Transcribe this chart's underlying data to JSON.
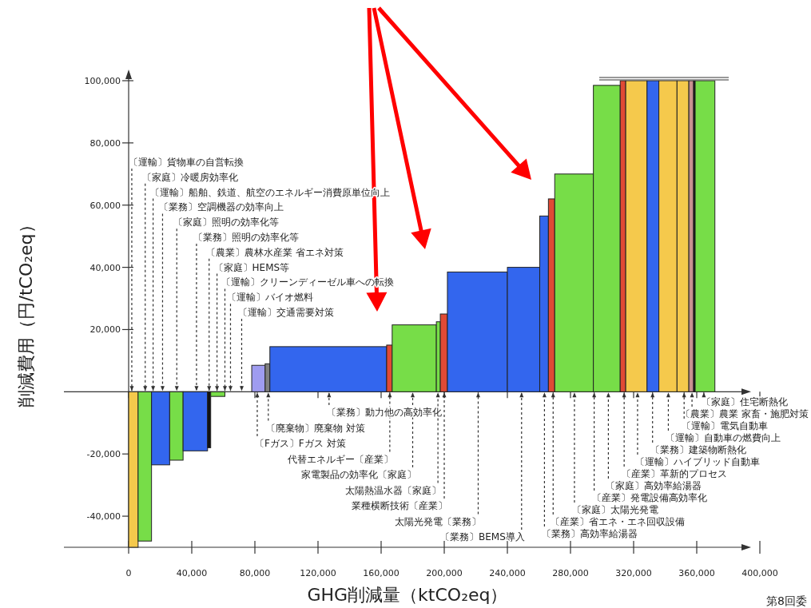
{
  "chart_data": {
    "type": "histogram",
    "xlabel": "GHG削減量（ktCO₂eq）",
    "ylabel": "削減費用（円/tCO₂eq）",
    "bins": [
      0,
      6000,
      14500,
      26000,
      34500,
      50000,
      52000,
      61000,
      78000,
      86500,
      89500,
      163500,
      167000,
      195000,
      197500,
      202000,
      240000,
      260500,
      266000,
      270000,
      294500,
      311500,
      315000,
      328500,
      336000,
      347500,
      355000,
      358000,
      359000,
      371500
    ],
    "values": [
      -50000,
      -48000,
      -23500,
      -22000,
      -19000,
      -18000,
      -1500,
      null,
      8500,
      9000,
      14500,
      15000,
      21500,
      22500,
      25000,
      38500,
      40000,
      56500,
      62000,
      70000,
      98500,
      100000,
      100000,
      100000,
      100000,
      100000,
      100000,
      100000,
      100000
    ],
    "colors": [
      "#f5c94c",
      "#77dd48",
      "#3366ee",
      "#77dd48",
      "#3366ee",
      "#111111",
      "#77dd48",
      null,
      "#9f9cf0",
      "#808080",
      "#3366ee",
      "#e04a35",
      "#77dd48",
      "#77dd48",
      "#e04a35",
      "#3366ee",
      "#3366ee",
      "#3366ee",
      "#e04a35",
      "#77dd48",
      "#77dd48",
      "#e04a35",
      "#f5c94c",
      "#3366ee",
      "#f5c94c",
      "#f5c94c",
      "#c89090",
      "#111111",
      "#77dd48"
    ],
    "xlim": [
      0,
      400000
    ],
    "ylim": [
      -50000,
      100000
    ],
    "xticks": [
      0,
      {
        "value": 40000,
        "label": "40,000"
      },
      {
        "value": 80000,
        "label": "80,000"
      },
      {
        "value": 120000,
        "label": "120,000"
      },
      {
        "value": 160000,
        "label": "160,000"
      },
      {
        "value": 200000,
        "label": "200,000"
      },
      {
        "value": 240000,
        "label": "240,000"
      },
      {
        "value": 280000,
        "label": "280,000"
      },
      {
        "value": 320000,
        "label": "320,000"
      },
      {
        "value": 360000,
        "label": "360,000"
      },
      {
        "value": 400000,
        "label": "400,000"
      }
    ],
    "yticks": [
      {
        "value": -40000,
        "label": "-40,000"
      },
      {
        "value": -20000,
        "label": "-20,000"
      },
      {
        "value": 20000,
        "label": "20,000"
      },
      {
        "value": 40000,
        "label": "40,000"
      },
      {
        "value": 60000,
        "label": "60,000"
      },
      {
        "value": 80000,
        "label": "80,000"
      },
      {
        "value": 100000,
        "label": "100,000"
      }
    ],
    "annotations": [
      {
        "text": "〔運輸〕貨物車の自営転換",
        "x": 2000,
        "y": 0
      },
      {
        "text": "〔家庭〕冷暖房効率化",
        "x": 10500,
        "y": 0
      },
      {
        "text": "〔運輸〕船舶、鉄道、航空のエネルギー消費原単位向上",
        "x": 15500,
        "y": 0
      },
      {
        "text": "〔業務〕空調機器の効率向上",
        "x": 21500,
        "y": 0
      },
      {
        "text": "〔家庭〕照明の効率化等",
        "x": 30500,
        "y": 0
      },
      {
        "text": "〔業務〕照明の効率化等",
        "x": 43000,
        "y": 0
      },
      {
        "text": "〔農業〕農林水産業 省エネ対策",
        "x": 51000,
        "y": 0
      },
      {
        "text": "〔家庭〕HEMS等",
        "x": 56000,
        "y": 0
      },
      {
        "text": "〔運輸〕クリーンディーゼル車への転換",
        "x": 61000,
        "y": 0
      },
      "〔運輸〕バイオ燃料",
      "〔運輸〕交通需要対策",
      {
        "text": "〔業務〕動力他の高効率化",
        "x": 127000,
        "y": 0
      },
      {
        "text": "〔廃棄物〕廃棄物 対策",
        "x": 88500,
        "y": 0
      },
      {
        "text": "〔Fガス〕Fガス 対策",
        "x": 81500,
        "y": 0
      },
      {
        "text": "代替エネルギー〔産業〕",
        "x": 165500,
        "y": 0
      },
      {
        "text": "家電製品の効率化〔家庭〕",
        "x": 180000,
        "y": 0
      },
      {
        "text": "太陽熱温水器〔家庭〕",
        "x": 196000,
        "y": 0
      },
      {
        "text": "業種横断技術〔産業〕",
        "x": 200000,
        "y": 0
      },
      {
        "text": "太陽光発電〔業務〕",
        "x": 221500,
        "y": 0
      },
      {
        "text": "〔業務〕BEMS導入",
        "x": 249000,
        "y": 0
      },
      {
        "text": "〔業務〕高効率給湯器",
        "x": 263500,
        "y": 0
      },
      {
        "text": "〔産業〕省エネ・エネ回収設備",
        "x": 269000,
        "y": 0
      },
      {
        "text": "〔家庭〕太陽光発電",
        "x": 282500,
        "y": 0
      },
      {
        "text": "〔産業〕発電設備高効率化",
        "x": 295000,
        "y": 0
      },
      {
        "text": "〔家庭〕高効率給湯器",
        "x": 304000,
        "y": 0
      },
      {
        "text": "〔産業〕革新的プロセス",
        "x": 314000,
        "y": 0
      },
      {
        "text": "〔運輸〕ハイブリッド自動車",
        "x": 322500,
        "y": 0
      },
      {
        "text": "〔業務〕建築物断熱化",
        "x": 332000,
        "y": 0
      },
      {
        "text": "〔運輸〕自動車の燃費向上",
        "x": 342000,
        "y": 0
      },
      {
        "text": "〔運輸〕電気自動車",
        "x": 352000,
        "y": 0
      },
      {
        "text": "〔農業〕農業 家畜・施肥対策",
        "x": 357000,
        "y": 0
      },
      {
        "text": "〔家庭〕住宅断熱化",
        "x": 364500,
        "y": 0
      },
      "第8回委"
    ]
  }
}
